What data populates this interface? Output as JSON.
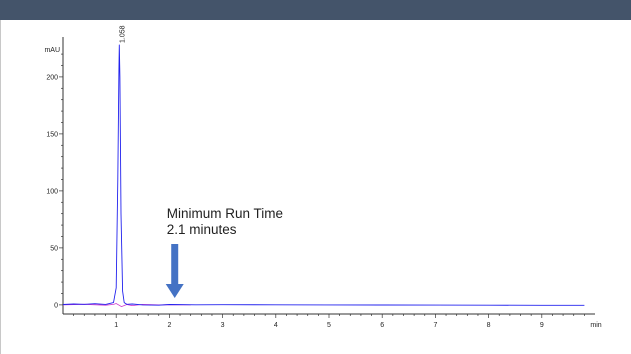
{
  "window": {
    "header_color": "#44546a"
  },
  "chart_data": {
    "type": "line",
    "ylabel": "mAU",
    "xlabel": "min",
    "xlim": [
      0,
      10
    ],
    "ylim": [
      -8,
      235
    ],
    "xticks": [
      1,
      2,
      3,
      4,
      5,
      6,
      7,
      8,
      9
    ],
    "yticks": [
      0,
      50,
      100,
      150,
      200
    ],
    "series": [
      {
        "color": "#2222ee",
        "x": [
          0.0,
          0.2,
          0.4,
          0.6,
          0.8,
          0.95,
          1.0,
          1.03,
          1.05,
          1.058,
          1.07,
          1.09,
          1.12,
          1.15,
          1.2,
          1.3,
          1.5,
          1.8,
          2.0,
          2.5,
          3.0,
          4.0,
          5.0,
          6.0,
          7.0,
          8.0,
          9.0,
          9.8
        ],
        "values": [
          0.3,
          0.8,
          0.5,
          1.0,
          0.4,
          2.0,
          15,
          110,
          205,
          228,
          200,
          80,
          12,
          2,
          0.5,
          0.8,
          0.0,
          -0.3,
          0.3,
          0.1,
          0.2,
          0.1,
          0.0,
          -0.1,
          -0.2,
          -0.3,
          -0.4,
          -0.4
        ]
      }
    ],
    "secondary_trace": {
      "color": "#cc33cc",
      "x": [
        0.0,
        0.4,
        0.8,
        0.95,
        1.0,
        1.1,
        1.2,
        1.3,
        1.5,
        1.8,
        2.0,
        2.4
      ],
      "values": [
        0.0,
        0.5,
        -0.3,
        0.4,
        1.2,
        -1.5,
        0.3,
        -0.6,
        0.4,
        0.0,
        0.2,
        0.0
      ]
    },
    "peak_labels": [
      {
        "x": 1.058,
        "y": 228,
        "label": "1.058"
      }
    ],
    "annotations": [
      {
        "lines": [
          "Minimum Run Time",
          "2.1 minutes"
        ],
        "arrow_x": 2.1,
        "color": "#4472c4"
      }
    ],
    "grid": false,
    "legend": "none"
  }
}
